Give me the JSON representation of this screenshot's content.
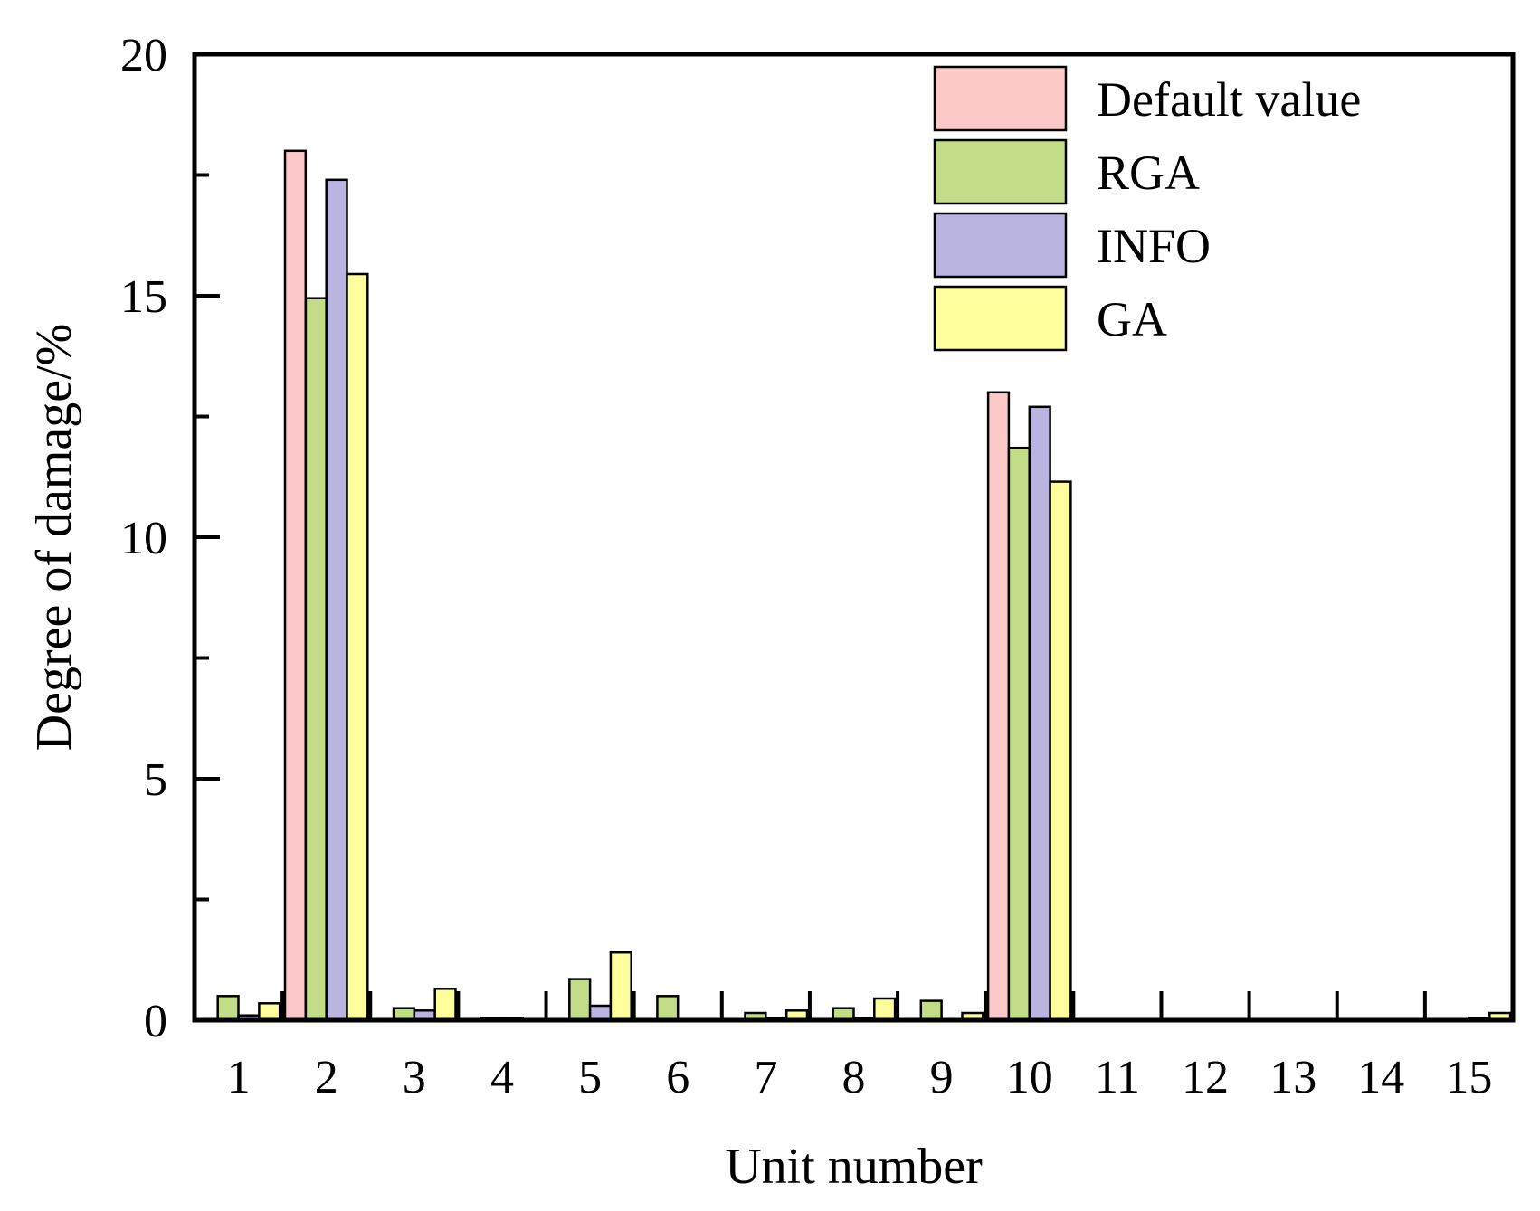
{
  "chart_data": {
    "type": "bar",
    "xlabel": "Unit number",
    "ylabel": "Degree of damage/%",
    "ylim": [
      0,
      20
    ],
    "yticks": [
      0,
      5,
      10,
      15,
      20
    ],
    "categories": [
      "1",
      "2",
      "3",
      "4",
      "5",
      "6",
      "7",
      "8",
      "9",
      "10",
      "11",
      "12",
      "13",
      "14",
      "15"
    ],
    "legend_position": "top-right",
    "series": [
      {
        "name": "Default value",
        "color": "#fcc8c8",
        "values": [
          0,
          18.0,
          0,
          0,
          0,
          0,
          0,
          0,
          0,
          13.0,
          0,
          0,
          0,
          0,
          0
        ]
      },
      {
        "name": "RGA",
        "color": "#c3dc87",
        "values": [
          0.5,
          14.95,
          0.25,
          0.05,
          0.85,
          0.5,
          0.15,
          0.25,
          0.4,
          11.85,
          0,
          0,
          0,
          0,
          0
        ]
      },
      {
        "name": "INFO",
        "color": "#bab5e0",
        "values": [
          0.1,
          17.4,
          0.2,
          0.05,
          0.3,
          0,
          0.05,
          0.05,
          0,
          12.7,
          0,
          0,
          0,
          0,
          0.05
        ]
      },
      {
        "name": "GA",
        "color": "#fefe9d",
        "values": [
          0.35,
          15.45,
          0.65,
          0,
          1.4,
          0,
          0.2,
          0.45,
          0.15,
          11.15,
          0,
          0,
          0,
          0,
          0.15
        ]
      }
    ]
  }
}
